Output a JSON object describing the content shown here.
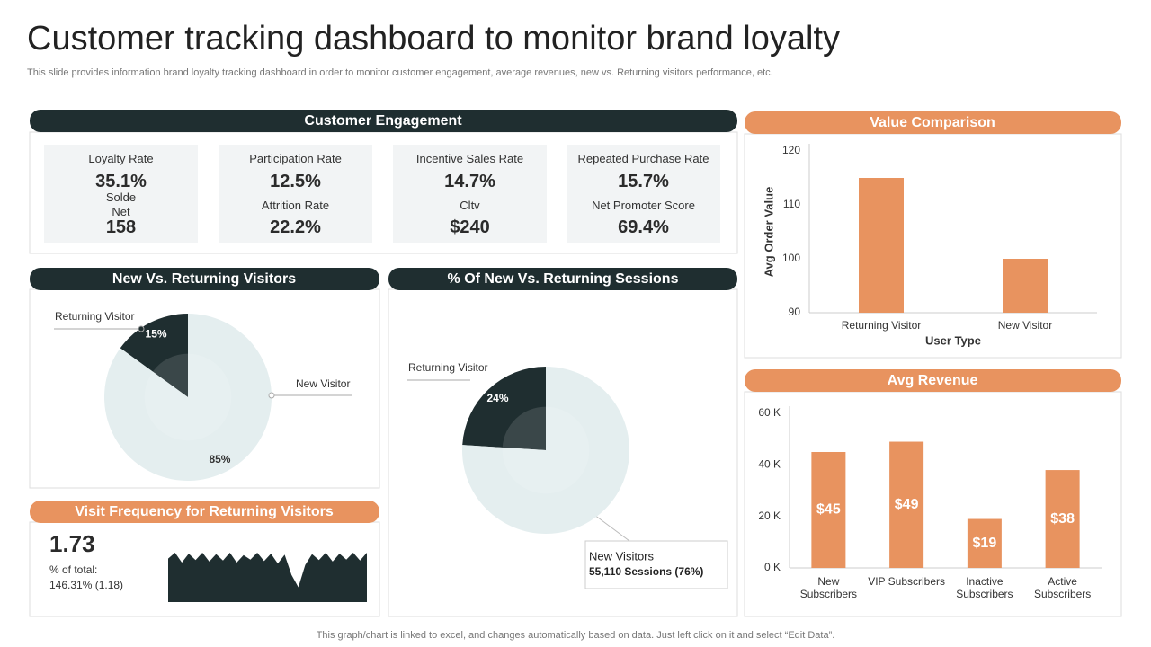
{
  "title": "Customer tracking dashboard to monitor brand loyalty",
  "subtitle": "This slide provides information brand loyalty tracking dashboard in order to monitor customer engagement, average revenues, new vs. Returning visitors performance, etc.",
  "footer": "This graph/chart is linked to excel,  and changes automatically based on data. Just left click on it and select “Edit Data”.",
  "engagement": {
    "title": "Customer Engagement",
    "cards": [
      {
        "items": [
          {
            "label": "Loyalty Rate",
            "value": "35.1%"
          },
          {
            "label": "Solde Net",
            "value": "158"
          }
        ]
      },
      {
        "items": [
          {
            "label": "Participation Rate",
            "value": "12.5%"
          },
          {
            "label": "Attrition Rate",
            "value": "22.2%"
          }
        ]
      },
      {
        "items": [
          {
            "label": "Incentive  Sales Rate",
            "value": "14.7%"
          },
          {
            "label": "Cltv",
            "value": "$240"
          }
        ]
      },
      {
        "items": [
          {
            "label": "Repeated Purchase Rate",
            "value": "15.7%"
          },
          {
            "label": "Net Promoter  Score",
            "value": "69.4%"
          }
        ]
      }
    ]
  },
  "chart_data": [
    {
      "type": "pie",
      "title": "New Vs. Returning Visitors",
      "categories": [
        "Returning Visitor",
        "New Visitor"
      ],
      "values": [
        15,
        85
      ],
      "value_labels": [
        "15%",
        "85%"
      ],
      "colors": [
        "#1f2e30",
        "#e4eeef"
      ]
    },
    {
      "type": "pie",
      "title": "% Of New Vs. Returning Sessions",
      "categories": [
        "Returning Visitor",
        "New Visitors"
      ],
      "values": [
        24,
        76
      ],
      "value_labels": [
        "24%",
        "55,110  Sessions  (76%)"
      ],
      "colors": [
        "#1f2e30",
        "#e4eeef"
      ]
    },
    {
      "type": "area",
      "title": "Visit Frequency for Returning Visitors",
      "kpi": "1.73",
      "note": "% of total:",
      "note_detail": "146.31% (1.18)",
      "values": [
        88,
        100,
        80,
        98,
        85,
        100,
        82,
        97,
        84,
        100,
        80,
        95,
        86,
        100,
        83,
        98,
        78,
        96,
        55,
        30,
        75,
        97,
        85,
        100,
        82,
        98,
        86,
        100,
        84,
        100
      ],
      "ylim": [
        0,
        100
      ],
      "color": "#1f2e30"
    },
    {
      "type": "bar",
      "title": "Value Comparison",
      "categories": [
        "Returning Visitor",
        "New Visitor"
      ],
      "values": [
        115,
        100
      ],
      "ylim": [
        90,
        120
      ],
      "yticks": [
        90,
        100,
        110,
        120
      ],
      "xlabel": "User Type",
      "ylabel": "Avg Order Value",
      "color": "#e8935f",
      "grid": false
    },
    {
      "type": "bar",
      "title": "Avg Revenue",
      "categories": [
        "New\nSubscribers",
        "VIP Subscribers",
        "Inactive\nSubscribers",
        "Active\nSubscribers"
      ],
      "values": [
        45,
        49,
        19,
        38
      ],
      "value_labels": [
        "$45",
        "$49",
        "$19",
        "$38"
      ],
      "ylim": [
        0,
        60
      ],
      "yticks": [
        {
          "value": 0,
          "label": "0 K"
        },
        {
          "value": 20,
          "label": "20 K"
        },
        {
          "value": 40,
          "label": "40 K"
        },
        {
          "value": 60,
          "label": "60 K"
        }
      ],
      "color": "#e8935f",
      "grid": false
    }
  ]
}
